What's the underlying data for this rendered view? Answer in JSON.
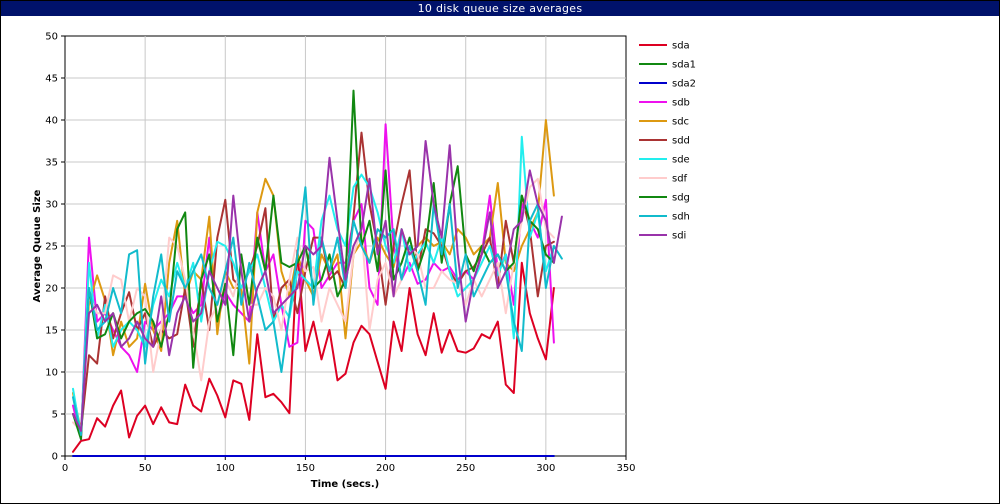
{
  "window": {
    "title": "10 disk queue size averages"
  },
  "chart_data": {
    "type": "line",
    "title": "10 disk queue size averages",
    "xlabel": "Time (secs.)",
    "ylabel": "Average Queue Size",
    "xlim": [
      0,
      350
    ],
    "ylim": [
      0,
      50
    ],
    "xticks": [
      0,
      50,
      100,
      150,
      200,
      250,
      300,
      350
    ],
    "yticks": [
      0,
      5,
      10,
      15,
      20,
      25,
      30,
      35,
      40,
      45,
      50
    ],
    "grid": true,
    "legend_position": "right",
    "series": [
      {
        "name": "sda",
        "color": "#dd0022",
        "x": [
          5,
          10,
          15,
          20,
          25,
          30,
          35,
          40,
          45,
          50,
          55,
          60,
          65,
          70,
          75,
          80,
          85,
          90,
          95,
          100,
          105,
          110,
          115,
          120,
          125,
          130,
          135,
          140,
          145,
          150,
          155,
          160,
          165,
          170,
          175,
          180,
          185,
          190,
          195,
          200,
          205,
          210,
          215,
          220,
          225,
          230,
          235,
          240,
          245,
          250,
          255,
          260,
          265,
          270,
          275,
          280,
          285,
          290,
          295,
          300,
          305
        ],
        "y": [
          0.5,
          1.8,
          2.0,
          4.5,
          3.5,
          6.0,
          7.8,
          2.2,
          4.8,
          6.0,
          3.8,
          5.8,
          4.0,
          3.8,
          8.5,
          6.0,
          5.3,
          9.2,
          7.2,
          4.6,
          9.0,
          8.6,
          4.3,
          14.5,
          7.0,
          7.4,
          6.4,
          5.1,
          24.5,
          12.5,
          16.0,
          11.5,
          15.0,
          9.0,
          9.8,
          13.5,
          15.5,
          14.5,
          11.2,
          8.0,
          16.0,
          12.5,
          20.0,
          14.5,
          12.0,
          17.0,
          12.3,
          15.0,
          12.5,
          12.3,
          12.8,
          14.5,
          14.0,
          16.0,
          8.5,
          7.5,
          23.0,
          17.0,
          14.0,
          11.5,
          20.0
        ]
      },
      {
        "name": "sda1",
        "color": "#118811",
        "x": [
          5,
          300,
          305
        ],
        "y": [
          0.0,
          0.0,
          0.0
        ]
      },
      {
        "name": "sda2",
        "color": "#0000cc",
        "x": [
          5,
          305
        ],
        "y": [
          0.0,
          0.0
        ]
      },
      {
        "name": "sdb",
        "color": "#ee11ee",
        "x": [
          5,
          10,
          15,
          20,
          25,
          30,
          35,
          40,
          45,
          50,
          55,
          60,
          65,
          70,
          75,
          80,
          85,
          90,
          95,
          100,
          105,
          110,
          115,
          120,
          125,
          130,
          135,
          140,
          145,
          150,
          155,
          160,
          165,
          170,
          175,
          180,
          185,
          190,
          195,
          200,
          205,
          210,
          215,
          220,
          225,
          230,
          235,
          240,
          245,
          250,
          255,
          260,
          265,
          270,
          275,
          280,
          285,
          290,
          295,
          300,
          305
        ],
        "y": [
          6.0,
          2.0,
          26.0,
          16.0,
          17.0,
          15.0,
          13.0,
          12.0,
          10.0,
          16.0,
          15.0,
          16.0,
          17.0,
          19.0,
          19.0,
          17.0,
          18.0,
          26.0,
          16.0,
          19.5,
          18.0,
          17.0,
          16.0,
          29.0,
          22.0,
          24.0,
          18.0,
          13.0,
          13.5,
          28.0,
          27.0,
          20.0,
          21.5,
          23.0,
          23.0,
          28.0,
          30.0,
          20.0,
          18.0,
          39.5,
          25.0,
          21.0,
          23.0,
          20.5,
          21.0,
          23.0,
          22.0,
          22.5,
          21.0,
          22.0,
          21.0,
          24.0,
          31.0,
          22.0,
          24.0,
          18.0,
          30.0,
          28.0,
          26.0,
          30.5,
          13.5
        ]
      },
      {
        "name": "sdc",
        "color": "#dd9911",
        "x": [
          5,
          10,
          15,
          20,
          25,
          30,
          35,
          40,
          45,
          50,
          55,
          60,
          65,
          70,
          75,
          80,
          85,
          90,
          95,
          100,
          105,
          110,
          115,
          120,
          125,
          130,
          135,
          140,
          145,
          150,
          155,
          160,
          165,
          170,
          175,
          180,
          185,
          190,
          195,
          200,
          205,
          210,
          215,
          220,
          225,
          230,
          235,
          240,
          245,
          250,
          255,
          260,
          265,
          270,
          275,
          280,
          285,
          290,
          295,
          300,
          305
        ],
        "y": [
          7.5,
          3.0,
          18.0,
          21.5,
          18.5,
          12.0,
          16.0,
          13.0,
          14.0,
          20.5,
          15.0,
          12.5,
          23.0,
          28.0,
          19.0,
          22.0,
          21.0,
          28.5,
          14.5,
          22.0,
          20.0,
          20.0,
          11.0,
          29.0,
          33.0,
          31.0,
          22.0,
          19.0,
          24.0,
          21.0,
          19.0,
          24.0,
          22.0,
          24.0,
          14.0,
          24.0,
          25.5,
          23.0,
          26.0,
          24.0,
          22.5,
          27.0,
          24.0,
          25.0,
          26.0,
          25.0,
          25.5,
          24.0,
          27.0,
          26.0,
          24.0,
          25.0,
          26.0,
          32.5,
          23.0,
          22.0,
          25.0,
          27.0,
          29.0,
          40.0,
          31.0
        ]
      },
      {
        "name": "sdd",
        "color": "#aa3333",
        "x": [
          5,
          10,
          15,
          20,
          25,
          30,
          35,
          40,
          45,
          50,
          55,
          60,
          65,
          70,
          75,
          80,
          85,
          90,
          95,
          100,
          105,
          110,
          115,
          120,
          125,
          130,
          135,
          140,
          145,
          150,
          155,
          160,
          165,
          170,
          175,
          180,
          185,
          190,
          195,
          200,
          205,
          210,
          215,
          220,
          225,
          230,
          235,
          240,
          245,
          250,
          255,
          260,
          265,
          270,
          275,
          280,
          285,
          290,
          295,
          300,
          305
        ],
        "y": [
          5.0,
          3.0,
          12.0,
          11.0,
          19.0,
          14.0,
          17.0,
          19.5,
          15.0,
          17.0,
          13.0,
          15.0,
          14.0,
          14.5,
          20.0,
          13.0,
          21.0,
          15.0,
          26.0,
          30.5,
          21.0,
          20.0,
          22.0,
          25.0,
          29.5,
          16.0,
          20.0,
          21.0,
          17.0,
          22.0,
          26.0,
          26.0,
          21.0,
          22.0,
          20.0,
          28.5,
          38.5,
          30.0,
          25.0,
          18.0,
          25.0,
          30.0,
          34.0,
          22.0,
          27.0,
          26.5,
          25.0,
          22.0,
          20.5,
          22.0,
          22.5,
          24.0,
          26.0,
          20.0,
          28.0,
          23.0,
          31.0,
          27.0,
          19.0,
          25.0,
          25.5
        ]
      },
      {
        "name": "sde",
        "color": "#22eeee",
        "x": [
          5,
          10,
          15,
          20,
          25,
          30,
          35,
          40,
          45,
          50,
          55,
          60,
          65,
          70,
          75,
          80,
          85,
          90,
          95,
          100,
          105,
          110,
          115,
          120,
          125,
          130,
          135,
          140,
          145,
          150,
          155,
          160,
          165,
          170,
          175,
          180,
          185,
          190,
          195,
          200,
          205,
          210,
          215,
          220,
          225,
          230,
          235,
          240,
          245,
          250,
          255,
          260,
          265,
          270,
          275,
          280,
          285,
          290,
          295,
          300,
          305
        ],
        "y": [
          8.0,
          2.5,
          23.0,
          14.0,
          18.0,
          13.0,
          15.0,
          16.0,
          15.0,
          13.0,
          18.0,
          21.0,
          19.0,
          23.0,
          20.0,
          23.0,
          16.0,
          22.0,
          25.5,
          25.0,
          23.0,
          20.0,
          22.0,
          24.0,
          20.0,
          16.0,
          18.0,
          16.5,
          22.0,
          21.0,
          20.0,
          28.0,
          31.0,
          27.0,
          25.0,
          32.0,
          33.5,
          32.0,
          29.0,
          25.0,
          23.0,
          27.0,
          22.0,
          24.0,
          25.5,
          23.0,
          26.0,
          22.0,
          19.0,
          20.0,
          21.0,
          23.0,
          25.0,
          21.5,
          24.0,
          14.0,
          38.0,
          26.0,
          29.0,
          22.0,
          25.0
        ]
      },
      {
        "name": "sdf",
        "color": "#ffcccc",
        "x": [
          5,
          10,
          15,
          20,
          25,
          30,
          35,
          40,
          45,
          50,
          55,
          60,
          65,
          70,
          75,
          80,
          85,
          90,
          95,
          100,
          105,
          110,
          115,
          120,
          125,
          130,
          135,
          140,
          145,
          150,
          155,
          160,
          165,
          170,
          175,
          180,
          185,
          190,
          195,
          200,
          205,
          210,
          215,
          220,
          225,
          230,
          235,
          240,
          245,
          250,
          255,
          260,
          265,
          270,
          275,
          280,
          285,
          290,
          295,
          300,
          305
        ],
        "y": [
          4.0,
          3.0,
          19.0,
          17.0,
          17.0,
          21.5,
          21.0,
          16.0,
          20.0,
          19.0,
          10.0,
          15.0,
          26.0,
          25.0,
          21.0,
          15.0,
          9.0,
          16.0,
          18.0,
          21.0,
          19.0,
          23.0,
          18.0,
          18.0,
          20.0,
          19.0,
          15.0,
          21.0,
          26.0,
          22.0,
          22.5,
          16.0,
          20.0,
          18.0,
          16.0,
          24.0,
          27.0,
          15.0,
          21.0,
          23.0,
          19.0,
          21.0,
          25.0,
          24.0,
          20.0,
          20.0,
          22.0,
          21.0,
          20.5,
          18.0,
          21.0,
          19.0,
          21.0,
          23.0,
          17.0,
          23.0,
          28.0,
          32.0,
          33.0,
          27.0,
          26.0
        ]
      },
      {
        "name": "sdg",
        "color": "#118811",
        "x": [
          5,
          10,
          15,
          20,
          25,
          30,
          35,
          40,
          45,
          50,
          55,
          60,
          65,
          70,
          75,
          80,
          85,
          90,
          95,
          100,
          105,
          110,
          115,
          120,
          125,
          130,
          135,
          140,
          145,
          150,
          155,
          160,
          165,
          170,
          175,
          180,
          185,
          190,
          195,
          200,
          205,
          210,
          215,
          220,
          225,
          230,
          235,
          240,
          245,
          250,
          255,
          260,
          265,
          270,
          275,
          280,
          285,
          290,
          295,
          300,
          305
        ],
        "y": [
          5.0,
          2.0,
          20.0,
          14.0,
          14.5,
          17.0,
          14.0,
          16.0,
          17.0,
          17.5,
          16.0,
          13.0,
          17.0,
          27.0,
          29.0,
          10.5,
          21.0,
          24.0,
          16.0,
          20.5,
          12.0,
          24.0,
          18.0,
          26.0,
          22.0,
          31.0,
          23.0,
          22.5,
          23.0,
          25.0,
          20.0,
          21.0,
          24.0,
          19.0,
          21.0,
          43.5,
          25.0,
          28.0,
          22.0,
          34.0,
          21.0,
          23.0,
          26.0,
          22.0,
          25.0,
          32.5,
          23.0,
          30.0,
          34.5,
          24.0,
          22.0,
          25.0,
          23.0,
          24.0,
          22.0,
          23.0,
          31.0,
          28.0,
          27.0,
          24.0,
          23.0
        ]
      },
      {
        "name": "sdh",
        "color": "#11bbcc",
        "x": [
          5,
          10,
          15,
          20,
          25,
          30,
          35,
          40,
          45,
          50,
          55,
          60,
          65,
          70,
          75,
          80,
          85,
          90,
          95,
          100,
          105,
          110,
          115,
          120,
          125,
          130,
          135,
          140,
          145,
          150,
          155,
          160,
          165,
          170,
          175,
          180,
          185,
          190,
          195,
          200,
          205,
          210,
          215,
          220,
          225,
          230,
          235,
          240,
          245,
          250,
          255,
          260,
          265,
          270,
          275,
          280,
          285,
          290,
          295,
          300,
          305,
          310
        ],
        "y": [
          7.0,
          2.5,
          20.0,
          15.0,
          16.0,
          20.0,
          17.0,
          24.0,
          24.5,
          11.0,
          19.0,
          24.0,
          16.0,
          22.0,
          20.0,
          22.0,
          24.0,
          20.0,
          18.0,
          22.0,
          26.0,
          18.0,
          23.0,
          19.0,
          15.0,
          16.0,
          10.0,
          17.0,
          24.0,
          32.0,
          18.0,
          26.0,
          22.0,
          26.0,
          20.0,
          28.0,
          25.0,
          23.0,
          27.0,
          26.0,
          27.0,
          21.0,
          25.0,
          22.0,
          18.0,
          30.0,
          24.0,
          30.0,
          20.0,
          24.0,
          19.0,
          21.0,
          23.0,
          24.0,
          22.0,
          16.0,
          12.5,
          28.0,
          30.0,
          20.0,
          25.0,
          23.5
        ]
      },
      {
        "name": "sdi",
        "color": "#9933aa",
        "x": [
          5,
          10,
          15,
          20,
          25,
          30,
          35,
          40,
          45,
          50,
          55,
          60,
          65,
          70,
          75,
          80,
          85,
          90,
          95,
          100,
          105,
          110,
          115,
          120,
          125,
          130,
          135,
          140,
          145,
          150,
          155,
          160,
          165,
          170,
          175,
          180,
          185,
          190,
          195,
          200,
          205,
          210,
          215,
          220,
          225,
          230,
          235,
          240,
          245,
          250,
          255,
          260,
          265,
          270,
          275,
          280,
          285,
          290,
          295,
          300,
          305,
          310
        ],
        "y": [
          5.0,
          3.0,
          17.0,
          18.0,
          16.0,
          17.0,
          13.0,
          14.0,
          16.0,
          14.0,
          13.0,
          19.0,
          12.0,
          17.0,
          19.0,
          16.0,
          17.0,
          22.0,
          20.0,
          18.0,
          31.0,
          22.0,
          16.0,
          20.0,
          22.0,
          17.0,
          18.0,
          19.0,
          20.0,
          25.0,
          24.0,
          25.0,
          35.5,
          28.0,
          21.0,
          25.0,
          27.0,
          33.0,
          24.0,
          28.0,
          19.0,
          27.0,
          24.0,
          25.0,
          37.5,
          30.0,
          26.0,
          37.0,
          24.0,
          16.0,
          21.0,
          24.0,
          29.0,
          20.0,
          22.0,
          27.0,
          28.0,
          34.0,
          30.0,
          28.0,
          23.0,
          28.5
        ]
      }
    ]
  }
}
